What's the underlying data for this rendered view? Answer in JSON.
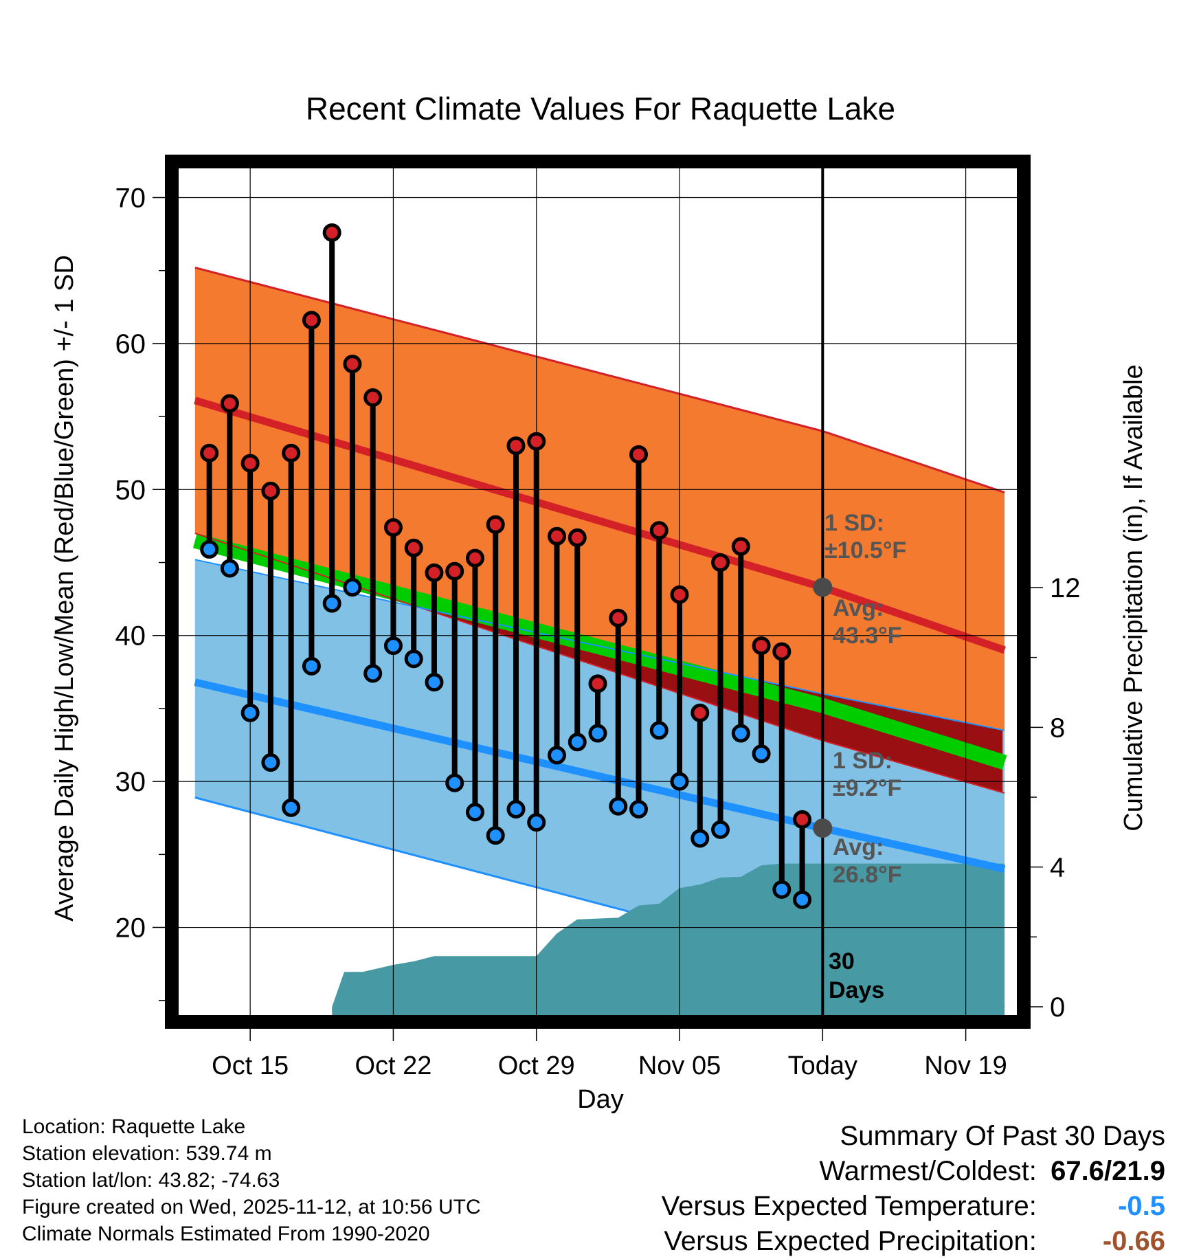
{
  "chart_data": {
    "type": "line",
    "title": "Recent Climate Values For Raquette Lake",
    "xlabel": "Day",
    "ylabel": "Average Daily High/Low/Mean (Red/Blue/Green) +/- 1 SD",
    "y2label": "Cumulative Precipitation (in), If Available",
    "ylim": [
      14,
      72
    ],
    "y_ticks": [
      20,
      30,
      40,
      50,
      60,
      70
    ],
    "y2lim": [
      0,
      24
    ],
    "y2_ticks": [
      0,
      4,
      8,
      12
    ],
    "xlim": [
      -3.5,
      37.5
    ],
    "x_ticks": [
      {
        "day": 0,
        "label": "Oct 15"
      },
      {
        "day": 7,
        "label": "Oct 22"
      },
      {
        "day": 14,
        "label": "Oct 29"
      },
      {
        "day": 21,
        "label": "Nov 05"
      },
      {
        "day": 28,
        "label": "Today"
      },
      {
        "day": 35,
        "label": "Nov 19"
      }
    ],
    "today_day": 28,
    "normals": {
      "high_mean": [
        [
          -2.7,
          56.1
        ],
        [
          28,
          43.3
        ],
        [
          36.9,
          39.0
        ]
      ],
      "high_upper": [
        [
          -2.7,
          65.2
        ],
        [
          28,
          54.0
        ],
        [
          36.9,
          49.8
        ]
      ],
      "high_lower": [
        [
          -2.7,
          47.0
        ],
        [
          28,
          32.8
        ],
        [
          36.9,
          29.2
        ]
      ],
      "low_mean": [
        [
          -2.7,
          36.8
        ],
        [
          28,
          26.8
        ],
        [
          36.9,
          24.0
        ]
      ],
      "low_upper": [
        [
          -2.7,
          45.2
        ],
        [
          28,
          36.0
        ],
        [
          36.9,
          33.5
        ]
      ],
      "low_lower": [
        [
          -2.7,
          28.9
        ],
        [
          28,
          17.6
        ],
        [
          36.9,
          14.5
        ]
      ],
      "avg_mean": [
        [
          -2.7,
          46.5
        ],
        [
          28,
          35.2
        ],
        [
          36.9,
          31.3
        ]
      ]
    },
    "series": [
      {
        "name": "High",
        "color": "#d42027",
        "values": [
          52.5,
          55.9,
          51.8,
          49.9,
          52.5,
          61.6,
          67.6,
          58.6,
          56.3,
          47.4,
          46.0,
          44.3,
          44.4,
          45.3,
          47.6,
          53.0,
          53.3,
          46.8,
          46.7,
          36.7,
          41.2,
          52.4,
          47.2,
          42.8,
          34.7,
          45.0,
          46.1,
          39.3,
          38.9,
          27.4
        ]
      },
      {
        "name": "Low",
        "color": "#1e90ff",
        "values": [
          45.9,
          44.6,
          34.7,
          31.3,
          28.2,
          37.9,
          42.2,
          43.3,
          37.4,
          39.3,
          38.4,
          36.8,
          29.9,
          27.9,
          26.3,
          28.1,
          27.2,
          31.8,
          32.7,
          33.3,
          28.3,
          28.1,
          33.5,
          30.0,
          26.1,
          26.7,
          33.3,
          31.9,
          22.6,
          21.9
        ]
      }
    ],
    "series_start_day": -2,
    "precipitation": {
      "name": "Cumulative Precipitation",
      "color": "#479aa4",
      "points": [
        [
          4.0,
          0.0
        ],
        [
          4.6,
          1.0
        ],
        [
          5.5,
          1.0
        ],
        [
          7.0,
          1.2
        ],
        [
          8.0,
          1.3
        ],
        [
          9.0,
          1.45
        ],
        [
          14.0,
          1.45
        ],
        [
          15.0,
          2.1
        ],
        [
          16.0,
          2.5
        ],
        [
          18.0,
          2.55
        ],
        [
          19.0,
          2.9
        ],
        [
          20.0,
          2.95
        ],
        [
          21.0,
          3.4
        ],
        [
          22.0,
          3.5
        ],
        [
          23.0,
          3.7
        ],
        [
          24.0,
          3.72
        ],
        [
          25.0,
          4.05
        ],
        [
          26.0,
          4.1
        ],
        [
          27.0,
          4.1
        ],
        [
          36.9,
          4.1
        ]
      ]
    },
    "annotations": {
      "high_sd_title": "1 SD:",
      "high_sd_value": "±10.5°F",
      "high_avg_title": "Avg:",
      "high_avg_value": "43.3°F",
      "low_sd_title": "1 SD:",
      "low_sd_value": "±9.2°F",
      "low_avg_title": "Avg:",
      "low_avg_value": "26.8°F",
      "days_count": "30",
      "days_word": "Days"
    }
  },
  "colors": {
    "high_band": "#f47a30",
    "high_line": "#d42027",
    "low_band": "#82c1e6",
    "low_line": "#1e90ff",
    "avg_band": "#00cc00",
    "overlap": "#990f12",
    "precip": "#479aa4",
    "annot_text": "#555555",
    "temp_anomaly": "#1e90ff",
    "precip_anomaly": "#a0522d"
  },
  "info": {
    "location": "Location: Raquette Lake",
    "elevation": "Station elevation: 539.74 m",
    "latlon": "Station lat/lon: 43.82; -74.63",
    "created": "Figure created on Wed, 2025-11-12, at 10:56 UTC",
    "normals": "Climate Normals Estimated From 1990-2020"
  },
  "summary": {
    "title": "Summary Of Past 30 Days",
    "warm_cold_label": "Warmest/Coldest:",
    "warm_cold_value": "67.6/21.9",
    "temp_label": "Versus Expected Temperature:",
    "temp_value": "-0.5",
    "precip_label": "Versus Expected Precipitation:",
    "precip_value": "-0.66"
  }
}
